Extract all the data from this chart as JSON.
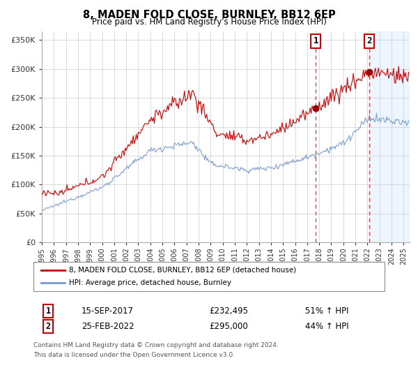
{
  "title": "8, MADEN FOLD CLOSE, BURNLEY, BB12 6EP",
  "subtitle": "Price paid vs. HM Land Registry's House Price Index (HPI)",
  "ylabel_ticks": [
    "£0",
    "£50K",
    "£100K",
    "£150K",
    "£200K",
    "£250K",
    "£300K",
    "£350K"
  ],
  "ytick_values": [
    0,
    50000,
    100000,
    150000,
    200000,
    250000,
    300000,
    350000
  ],
  "ylim": [
    0,
    365000
  ],
  "xlim_start": 1995.0,
  "xlim_end": 2025.5,
  "legend_line1": "8, MADEN FOLD CLOSE, BURNLEY, BB12 6EP (detached house)",
  "legend_line2": "HPI: Average price, detached house, Burnley",
  "event1_label": "1",
  "event1_date": "15-SEP-2017",
  "event1_price": "£232,495",
  "event1_info": "51% ↑ HPI",
  "event1_x": 2017.71,
  "event1_y": 232495,
  "event2_label": "2",
  "event2_date": "25-FEB-2022",
  "event2_price": "£295,000",
  "event2_info": "44% ↑ HPI",
  "event2_x": 2022.15,
  "event2_y": 295000,
  "footnote1": "Contains HM Land Registry data © Crown copyright and database right 2024.",
  "footnote2": "This data is licensed under the Open Government Licence v3.0.",
  "line1_color": "#cc0000",
  "line2_color": "#7799cc",
  "event_line_color": "#dd4444",
  "shade_color": "#ddeeff",
  "background_color": "#ffffff",
  "grid_color": "#cccccc"
}
